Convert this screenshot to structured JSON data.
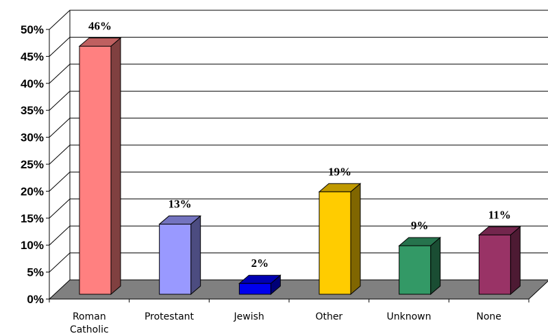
{
  "chart_data": {
    "type": "bar",
    "title": "",
    "xlabel": "",
    "ylabel": "",
    "ylim": [
      0,
      50
    ],
    "ytick_step": 5,
    "ytick_labels": [
      "0%",
      "5%",
      "10%",
      "15%",
      "20%",
      "25%",
      "30%",
      "35%",
      "40%",
      "45%",
      "50%"
    ],
    "grid": true,
    "legend": "none",
    "categories": [
      {
        "lines": [
          "Roman",
          "Catholic"
        ]
      },
      {
        "lines": [
          "Protestant"
        ]
      },
      {
        "lines": [
          "Jewish"
        ]
      },
      {
        "lines": [
          "Other"
        ]
      },
      {
        "lines": [
          "Unknown"
        ]
      },
      {
        "lines": [
          "None"
        ]
      }
    ],
    "values": [
      46,
      13,
      2,
      19,
      9,
      11
    ],
    "data_labels": [
      "46%",
      "13%",
      "2%",
      "19%",
      "9%",
      "11%"
    ],
    "colors": [
      {
        "front": "#ff8080",
        "side": "#804040",
        "top": "#bf6060"
      },
      {
        "front": "#9999ff",
        "side": "#4c4c80",
        "top": "#7373bf"
      },
      {
        "front": "#0000ee",
        "side": "#000077",
        "top": "#0000b3"
      },
      {
        "front": "#ffcc00",
        "side": "#806600",
        "top": "#bf9900"
      },
      {
        "front": "#339966",
        "side": "#1a4d33",
        "top": "#26734d"
      },
      {
        "front": "#993366",
        "side": "#4d1a33",
        "top": "#73264d"
      }
    ],
    "floor_color": "#808080"
  }
}
